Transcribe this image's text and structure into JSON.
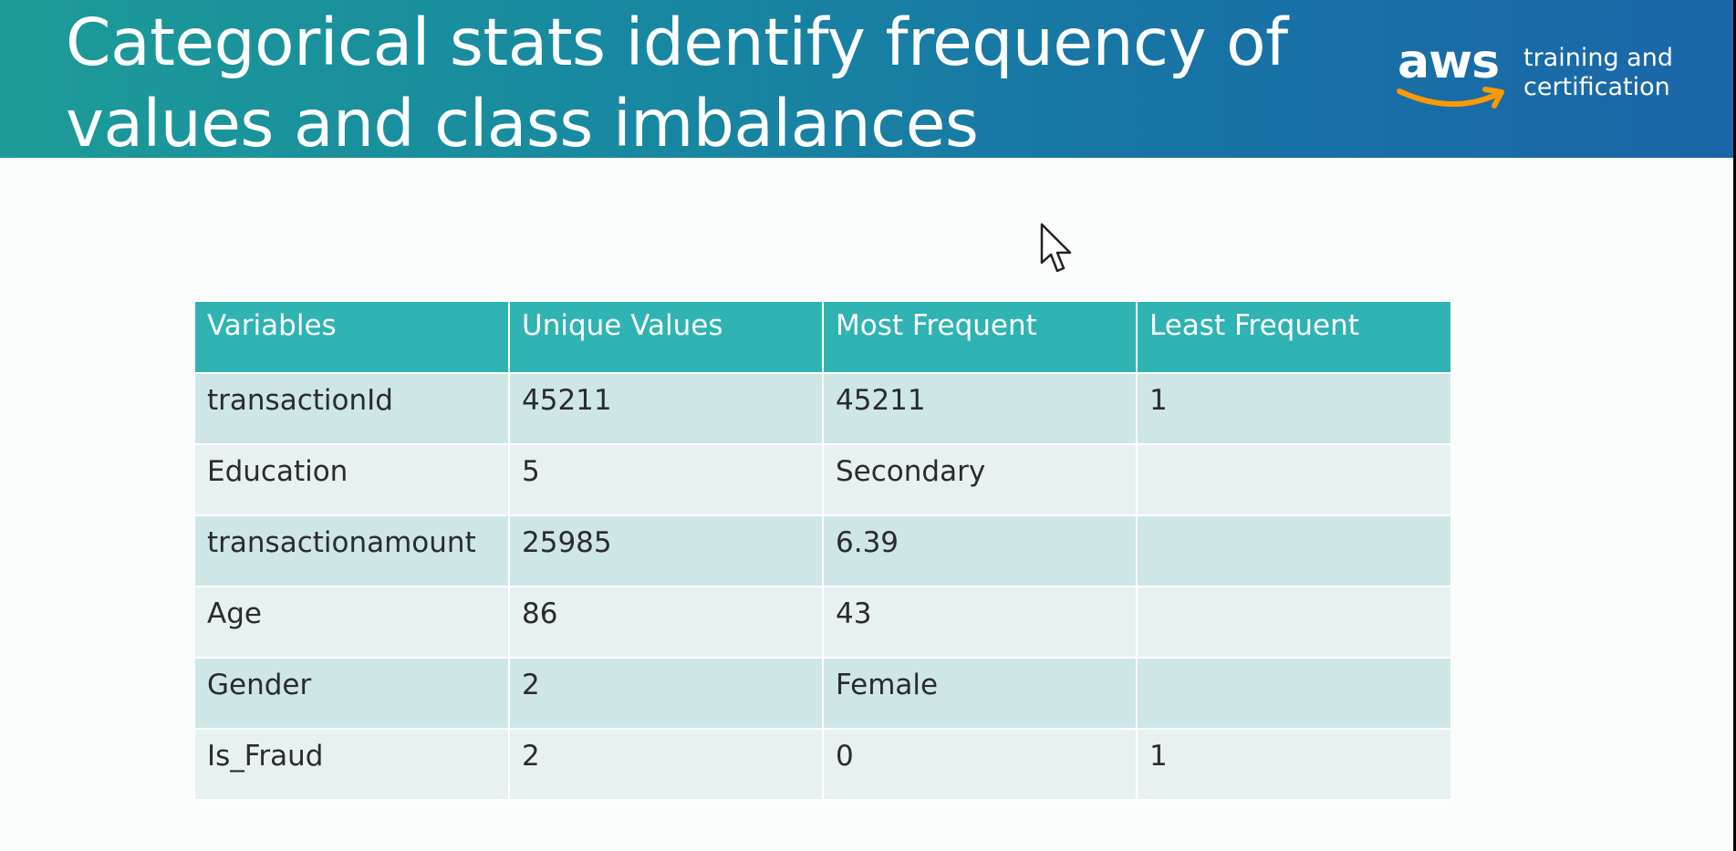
{
  "slide": {
    "title_line1": "Categorical stats identify frequency of",
    "title_line2": "values and class imbalances"
  },
  "logo": {
    "wordmark": "aws",
    "tagline_line1": "training and",
    "tagline_line2": "certification",
    "smile_color": "#ff9900"
  },
  "table": {
    "headers": [
      "Variables",
      "Unique Values",
      "Most Frequent",
      "Least Frequent"
    ],
    "rows": [
      [
        "transactionId",
        "45211",
        "45211",
        "1"
      ],
      [
        "Education",
        "5",
        "Secondary",
        ""
      ],
      [
        "transactionamount",
        "25985",
        "6.39",
        ""
      ],
      [
        "Age",
        "86",
        "43",
        ""
      ],
      [
        "Gender",
        "2",
        "Female",
        ""
      ],
      [
        "Is_Fraud",
        "2",
        "0",
        "1"
      ]
    ]
  },
  "colors": {
    "header_gradient_start": "#1c9b97",
    "header_gradient_end": "#1a66a8",
    "table_header": "#2fb3b3",
    "row_odd": "#cfe6e7",
    "row_even": "#e8f1f2"
  },
  "icons": {
    "cursor": "mouse-pointer-icon"
  }
}
